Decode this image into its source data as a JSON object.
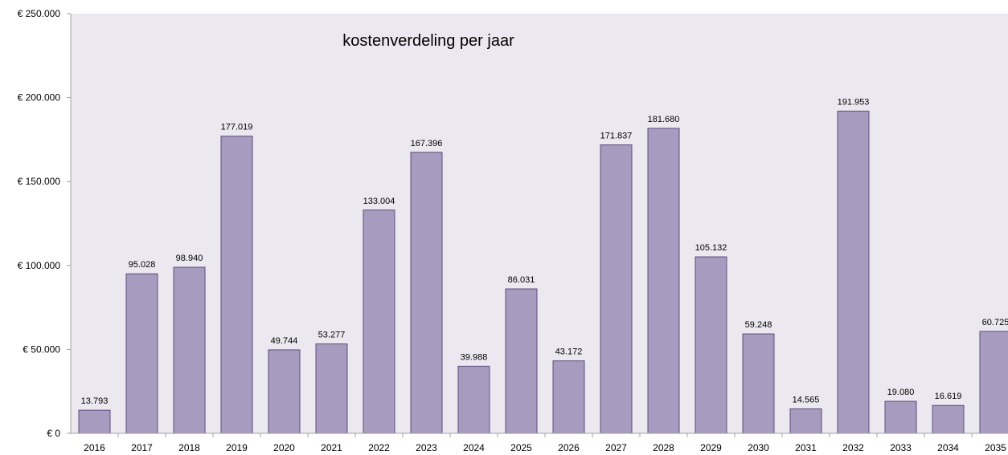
{
  "chart_data": {
    "type": "bar",
    "title": "kostenverdeling per jaar",
    "xlabel": "",
    "ylabel": "",
    "categories": [
      "2016",
      "2017",
      "2018",
      "2019",
      "2020",
      "2021",
      "2022",
      "2023",
      "2024",
      "2025",
      "2026",
      "2027",
      "2028",
      "2029",
      "2030",
      "2031",
      "2032",
      "2033",
      "2034",
      "2035"
    ],
    "values": [
      13793,
      95028,
      98940,
      177019,
      49744,
      53277,
      133004,
      167396,
      39988,
      86031,
      43172,
      171837,
      181680,
      105132,
      59248,
      14565,
      191953,
      19080,
      16619,
      60725
    ],
    "value_labels": [
      "13.793",
      "95.028",
      "98.940",
      "177.019",
      "49.744",
      "53.277",
      "133.004",
      "167.396",
      "39.988",
      "86.031",
      "43.172",
      "171.837",
      "181.680",
      "105.132",
      "59.248",
      "14.565",
      "191.953",
      "19.080",
      "16.619",
      "60.725"
    ],
    "ylim": [
      0,
      250000
    ],
    "y_ticks": [
      0,
      50000,
      100000,
      150000,
      200000,
      250000
    ],
    "y_tick_labels": [
      "€ 0",
      "€ 50.000",
      "€ 100.000",
      "€ 150.000",
      "€ 200.000",
      "€ 250.000"
    ],
    "grid": false,
    "legend": "none"
  },
  "colors": {
    "plot_background": "#ebe8ef",
    "bar_fill": "#a79bc0",
    "bar_stroke": "#5d4e7d",
    "axis": "#a0a0a0"
  }
}
